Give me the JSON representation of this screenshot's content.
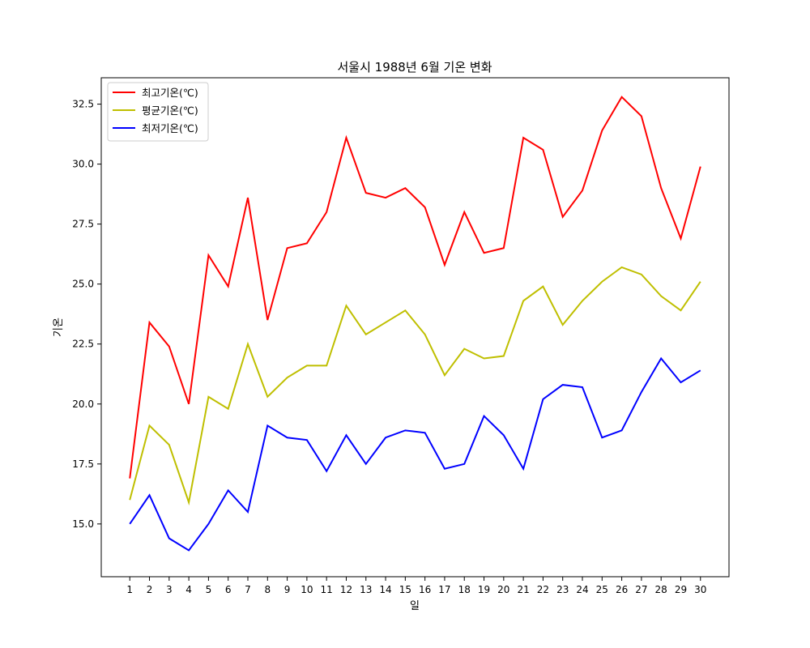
{
  "chart_data": {
    "type": "line",
    "title": "서울시 1988년 6월 기온 변화",
    "xlabel": "일",
    "ylabel": "기온",
    "x": [
      1,
      2,
      3,
      4,
      5,
      6,
      7,
      8,
      9,
      10,
      11,
      12,
      13,
      14,
      15,
      16,
      17,
      18,
      19,
      20,
      21,
      22,
      23,
      24,
      25,
      26,
      27,
      28,
      29,
      30
    ],
    "ylim": [
      12.8,
      33.6
    ],
    "yticks": [
      15.0,
      17.5,
      20.0,
      22.5,
      25.0,
      27.5,
      30.0,
      32.5
    ],
    "grid": false,
    "legend_position": "top-left",
    "series": [
      {
        "name": "최고기온(℃)",
        "color": "#ff0000",
        "values": [
          16.9,
          23.4,
          22.4,
          20.0,
          26.2,
          24.9,
          28.6,
          23.5,
          26.5,
          26.7,
          28.0,
          31.1,
          28.8,
          28.6,
          29.0,
          28.2,
          25.8,
          28.0,
          26.3,
          26.5,
          31.1,
          30.6,
          27.8,
          28.9,
          31.4,
          32.8,
          32.0,
          29.0,
          26.9,
          29.9
        ]
      },
      {
        "name": "평균기온(℃)",
        "color": "#bfbf00",
        "values": [
          16.0,
          19.1,
          18.3,
          15.9,
          20.3,
          19.8,
          22.5,
          20.3,
          21.1,
          21.6,
          21.6,
          24.1,
          22.9,
          23.4,
          23.9,
          22.9,
          21.2,
          22.3,
          21.9,
          22.0,
          24.3,
          24.9,
          23.3,
          24.3,
          25.1,
          25.7,
          25.4,
          24.5,
          23.9,
          25.1
        ]
      },
      {
        "name": "최저기온(℃)",
        "color": "#0000ff",
        "values": [
          15.0,
          16.2,
          14.4,
          13.9,
          15.0,
          16.4,
          15.5,
          19.1,
          18.6,
          18.5,
          17.2,
          18.7,
          17.5,
          18.6,
          18.9,
          18.8,
          17.3,
          17.5,
          19.5,
          18.7,
          17.3,
          20.2,
          20.8,
          20.7,
          18.6,
          18.9,
          20.5,
          21.9,
          20.9,
          21.4
        ]
      }
    ]
  }
}
